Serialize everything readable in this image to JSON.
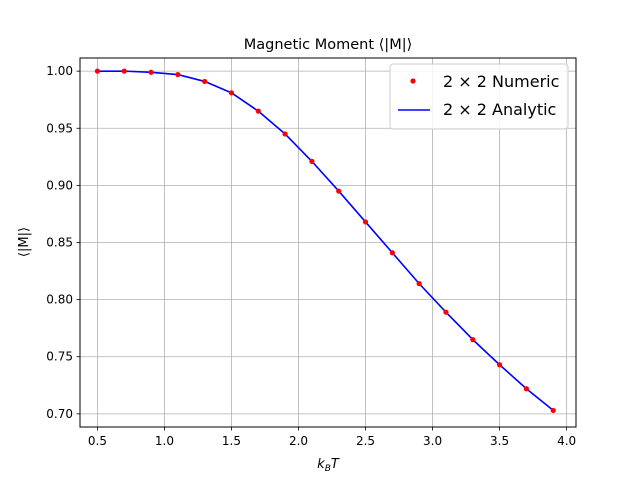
{
  "chart_data": {
    "type": "line",
    "title": "Magnetic Moment ⟨|M|⟩",
    "xlabel": "k_B T",
    "ylabel": "⟨|M|⟩",
    "xlim": [
      0.37,
      4.07
    ],
    "ylim": [
      0.6885,
      1.0115
    ],
    "xticks": [
      0.5,
      1.0,
      1.5,
      2.0,
      2.5,
      3.0,
      3.5,
      4.0
    ],
    "yticks": [
      0.7,
      0.75,
      0.8,
      0.85,
      0.9,
      0.95,
      1.0
    ],
    "xtick_labels": [
      "0.5",
      "1.0",
      "1.5",
      "2.0",
      "2.5",
      "3.0",
      "3.5",
      "4.0"
    ],
    "ytick_labels": [
      "0.70",
      "0.75",
      "0.80",
      "0.85",
      "0.90",
      "0.95",
      "1.00"
    ],
    "grid": true,
    "legend_position": "top-right",
    "x": [
      0.5,
      0.7,
      0.9,
      1.1,
      1.3,
      1.5,
      1.7,
      1.9,
      2.1,
      2.3,
      2.5,
      2.7,
      2.9,
      3.1,
      3.3,
      3.5,
      3.7,
      3.9
    ],
    "series": [
      {
        "name": "2 × 2 Numeric",
        "style": "points",
        "color": "#ff0000",
        "values": [
          1.0,
          1.0,
          0.999,
          0.997,
          0.991,
          0.981,
          0.965,
          0.945,
          0.921,
          0.895,
          0.868,
          0.841,
          0.814,
          0.789,
          0.765,
          0.743,
          0.722,
          0.703
        ]
      },
      {
        "name": "2 × 2 Analytic",
        "style": "line",
        "color": "#0000ff",
        "values": [
          1.0,
          1.0,
          0.999,
          0.997,
          0.991,
          0.981,
          0.965,
          0.945,
          0.921,
          0.895,
          0.868,
          0.841,
          0.814,
          0.789,
          0.765,
          0.743,
          0.722,
          0.703
        ]
      }
    ]
  }
}
